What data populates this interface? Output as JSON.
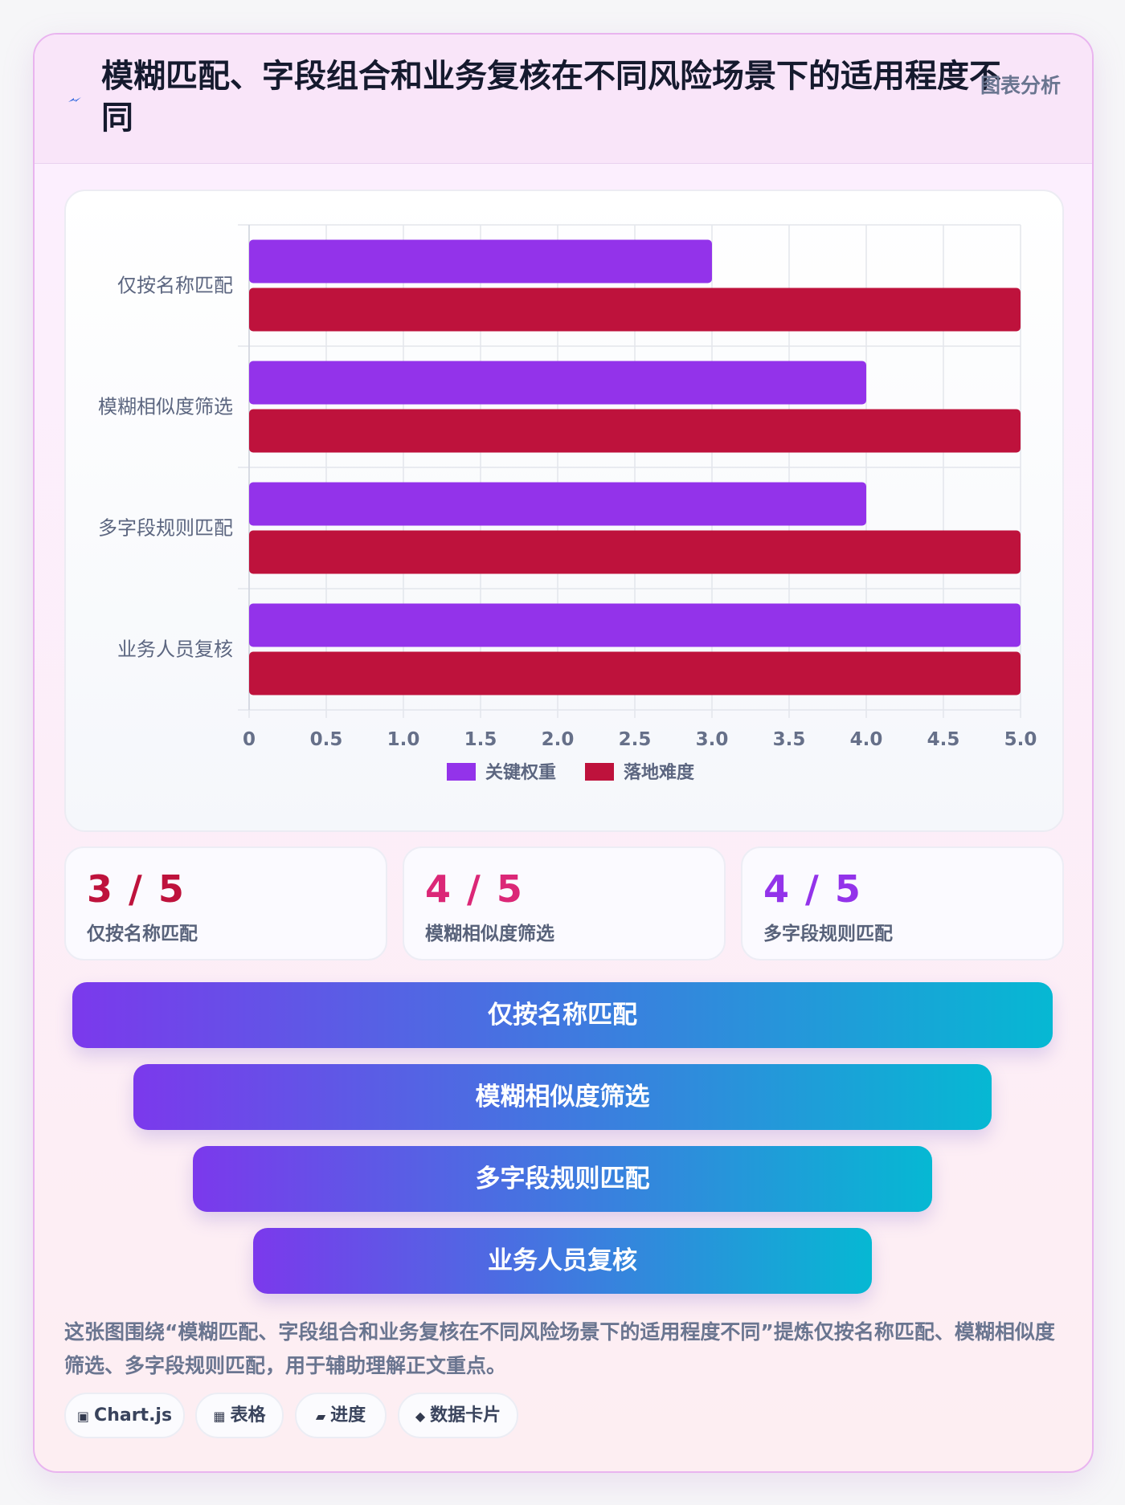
{
  "header": {
    "title": "模糊匹配、字段组合和业务复核在不同风险场景下的适用程度不同",
    "tag": "图表分析",
    "icon": "lightning-icon"
  },
  "chart_data": {
    "type": "bar",
    "orientation": "horizontal",
    "categories": [
      "仅按名称匹配",
      "模糊相似度筛选",
      "多字段规则匹配",
      "业务人员复核"
    ],
    "series": [
      {
        "name": "关键权重",
        "color": "#9333ea",
        "values": [
          3,
          4,
          4,
          5
        ]
      },
      {
        "name": "落地难度",
        "color": "#be123c",
        "values": [
          5,
          5,
          5,
          5
        ]
      }
    ],
    "xlim": [
      0,
      5
    ],
    "x_ticks": [
      "0",
      "0.5",
      "1.0",
      "1.5",
      "2.0",
      "2.5",
      "3.0",
      "3.5",
      "4.0",
      "4.5",
      "5.0"
    ],
    "grid": true,
    "legend_position": "bottom"
  },
  "stats": [
    {
      "value": "3 / 5",
      "label": "仅按名称匹配",
      "color": "#be123c"
    },
    {
      "value": "4 / 5",
      "label": "模糊相似度筛选",
      "color": "#db2777"
    },
    {
      "value": "4 / 5",
      "label": "多字段规则匹配",
      "color": "#9333ea"
    }
  ],
  "funnel": [
    "仅按名称匹配",
    "模糊相似度筛选",
    "多字段规则匹配",
    "业务人员复核"
  ],
  "summary": "这张图围绕“模糊匹配、字段组合和业务复核在不同风险场景下的适用程度不同”提炼仅按名称匹配、模糊相似度筛选、多字段规则匹配，用于辅助理解正文重点。",
  "chips": [
    {
      "icon": "▣",
      "icon_name": "chart-icon",
      "label": "Chart.js"
    },
    {
      "icon": "▦",
      "icon_name": "table-icon",
      "label": "表格"
    },
    {
      "icon": "▰",
      "icon_name": "progress-icon",
      "label": "进度"
    },
    {
      "icon": "◆",
      "icon_name": "data-card-icon",
      "label": "数据卡片"
    }
  ]
}
